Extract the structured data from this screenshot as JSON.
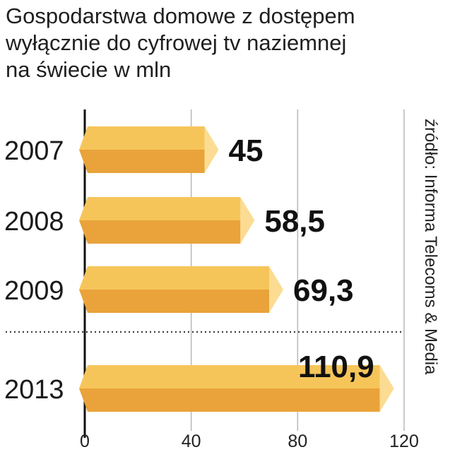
{
  "title_lines": [
    "Gospodarstwa domowe z dostępem",
    "wyłącznie do cyfrowej tv naziemnej",
    "na świecie w mln"
  ],
  "source": "źródło: Informa Telecoms & Media",
  "colors": {
    "bar_top": "#f6c55a",
    "bar_front": "#e9a33a",
    "bar_cap": "#fbdc92",
    "grid": "#b8b8b8",
    "axis": "#111111"
  },
  "chart_data": {
    "type": "bar",
    "orientation": "horizontal",
    "title": "Gospodarstwa domowe z dostępem wyłącznie do cyfrowej tv naziemnej na świecie w mln",
    "categories": [
      "2007",
      "2008",
      "2009",
      "2013"
    ],
    "values": [
      45,
      58.5,
      69.3,
      110.9
    ],
    "value_labels": [
      "45",
      "58,5",
      "69,3",
      "110,9"
    ],
    "xlim": [
      0,
      120
    ],
    "xticks": [
      0,
      40,
      80,
      120
    ],
    "xtick_labels": [
      "0",
      "40",
      "80",
      "120"
    ],
    "grid": true
  }
}
